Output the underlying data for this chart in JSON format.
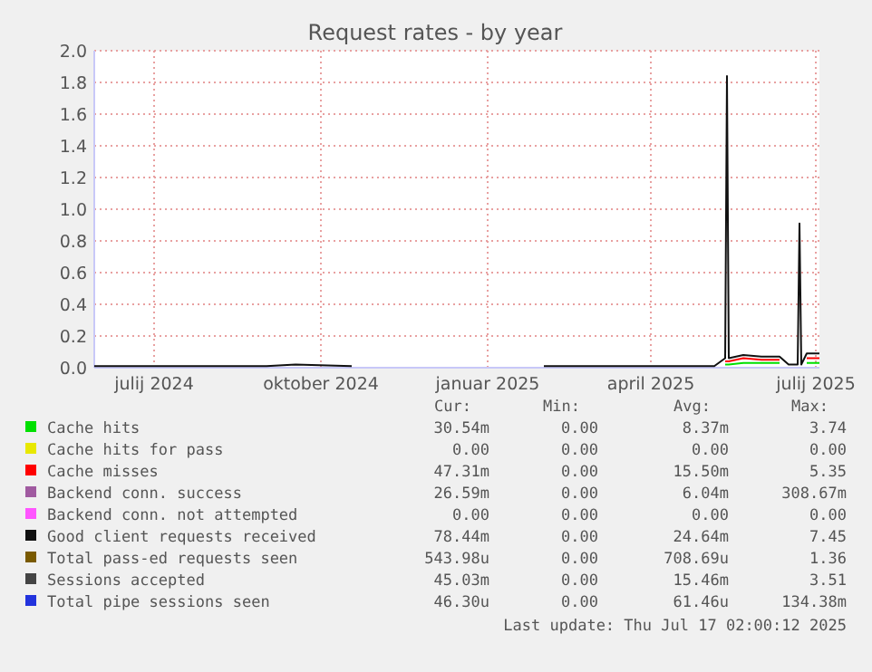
{
  "chart_data": {
    "type": "line",
    "title": "Request rates - by year",
    "x": [
      "2024-06-12",
      "2024-07-01",
      "2024-08-01",
      "2024-09-15",
      "2024-10-01",
      "2024-11-01",
      "2024-12-01",
      "2025-01-15",
      "2025-02-15",
      "2025-03-15",
      "2025-04-15",
      "2025-05-20",
      "2025-05-26",
      "2025-05-27",
      "2025-05-28",
      "2025-06-05",
      "2025-06-15",
      "2025-06-25",
      "2025-06-30",
      "2025-07-05",
      "2025-07-06",
      "2025-07-07",
      "2025-07-10",
      "2025-07-17"
    ],
    "xlim": [
      "2024-06-12",
      "2025-07-17"
    ],
    "xticks": [
      {
        "value": "2024-07-15",
        "label": "julij 2024"
      },
      {
        "value": "2024-10-15",
        "label": "oktober 2024"
      },
      {
        "value": "2025-01-15",
        "label": "januar 2025"
      },
      {
        "value": "2025-04-15",
        "label": "april 2025"
      },
      {
        "value": "2025-07-15",
        "label": "julij 2025"
      }
    ],
    "ylim": [
      0,
      2
    ],
    "yticks": [
      {
        "value": 0,
        "label": "0.0"
      },
      0.2,
      0.4,
      0.6,
      0.8,
      {
        "value": 1,
        "label": "1.0"
      },
      1.2,
      1.4,
      1.6,
      1.8,
      {
        "value": 2,
        "label": "2.0"
      }
    ],
    "grid": true,
    "legend": "bottom",
    "marker": "none",
    "line_style": "solid",
    "series": [
      {
        "name": "Cache hits",
        "color": "#00e000",
        "values": [
          null,
          null,
          null,
          null,
          null,
          null,
          null,
          null,
          null,
          null,
          null,
          null,
          0.02,
          0.02,
          0.02,
          0.03,
          0.03,
          0.03,
          null,
          null,
          null,
          null,
          0.03,
          0.03
        ]
      },
      {
        "name": "Cache hits for pass",
        "color": "#e8e800",
        "values": [
          null,
          null,
          null,
          null,
          null,
          null,
          null,
          null,
          null,
          null,
          null,
          null,
          null,
          null,
          null,
          null,
          null,
          null,
          null,
          null,
          null,
          null,
          null,
          null
        ]
      },
      {
        "name": "Cache misses",
        "color": "#ff0000",
        "values": [
          null,
          null,
          null,
          null,
          null,
          null,
          null,
          null,
          null,
          null,
          null,
          null,
          0.04,
          0.04,
          0.04,
          0.06,
          0.05,
          0.05,
          null,
          null,
          null,
          null,
          0.06,
          0.06
        ]
      },
      {
        "name": "Backend conn. success",
        "color": "#a05aa0",
        "values": [
          null,
          null,
          null,
          null,
          null,
          null,
          null,
          null,
          null,
          null,
          null,
          null,
          null,
          null,
          null,
          null,
          null,
          null,
          null,
          null,
          null,
          null,
          null,
          null
        ]
      },
      {
        "name": "Backend conn. not attempted",
        "color": "#ff55ff",
        "values": [
          null,
          null,
          null,
          null,
          null,
          null,
          null,
          null,
          null,
          null,
          null,
          null,
          null,
          null,
          null,
          null,
          null,
          null,
          null,
          null,
          null,
          null,
          null,
          null
        ]
      },
      {
        "name": "Good client requests received",
        "color": "#111111",
        "values": [
          0.01,
          0.01,
          0.01,
          0.01,
          0.02,
          0.01,
          null,
          null,
          0.01,
          0.01,
          0.01,
          0.01,
          0.06,
          1.84,
          0.06,
          0.08,
          0.07,
          0.07,
          0.02,
          0.02,
          0.91,
          0.02,
          0.09,
          0.09
        ]
      },
      {
        "name": "Total pass-ed requests seen",
        "color": "#7a5a00",
        "values": [
          null,
          null,
          null,
          null,
          null,
          null,
          null,
          null,
          null,
          null,
          null,
          null,
          null,
          null,
          null,
          null,
          null,
          null,
          null,
          null,
          null,
          null,
          null,
          null
        ]
      },
      {
        "name": "Sessions accepted",
        "color": "#444444",
        "values": [
          null,
          null,
          null,
          null,
          null,
          null,
          null,
          null,
          null,
          null,
          null,
          null,
          null,
          null,
          null,
          null,
          null,
          null,
          null,
          null,
          null,
          null,
          null,
          null
        ]
      },
      {
        "name": "Total pipe sessions seen",
        "color": "#2233dd",
        "values": [
          null,
          null,
          null,
          null,
          null,
          null,
          null,
          null,
          null,
          null,
          null,
          null,
          null,
          null,
          null,
          null,
          null,
          null,
          null,
          null,
          null,
          null,
          null,
          null
        ]
      }
    ],
    "annotations": [
      "Cur:",
      "Min:",
      "Avg:",
      "Max:",
      "30.54m",
      "0.00",
      "8.37m",
      "3.74",
      "0.00",
      "0.00",
      "0.00",
      "0.00",
      "47.31m",
      "0.00",
      "15.50m",
      "5.35",
      "26.59m",
      "0.00",
      "6.04m",
      "308.67m",
      "0.00",
      "0.00",
      "0.00",
      "0.00",
      "78.44m",
      "0.00",
      "24.64m",
      "7.45",
      "543.98u",
      "0.00",
      "708.69u",
      "1.36",
      "45.03m",
      "0.00",
      "15.46m",
      "3.51",
      "46.30u",
      "0.00",
      "61.46u",
      "134.38m",
      "Last update: Thu Jul 17 02:00:12 2025"
    ]
  }
}
